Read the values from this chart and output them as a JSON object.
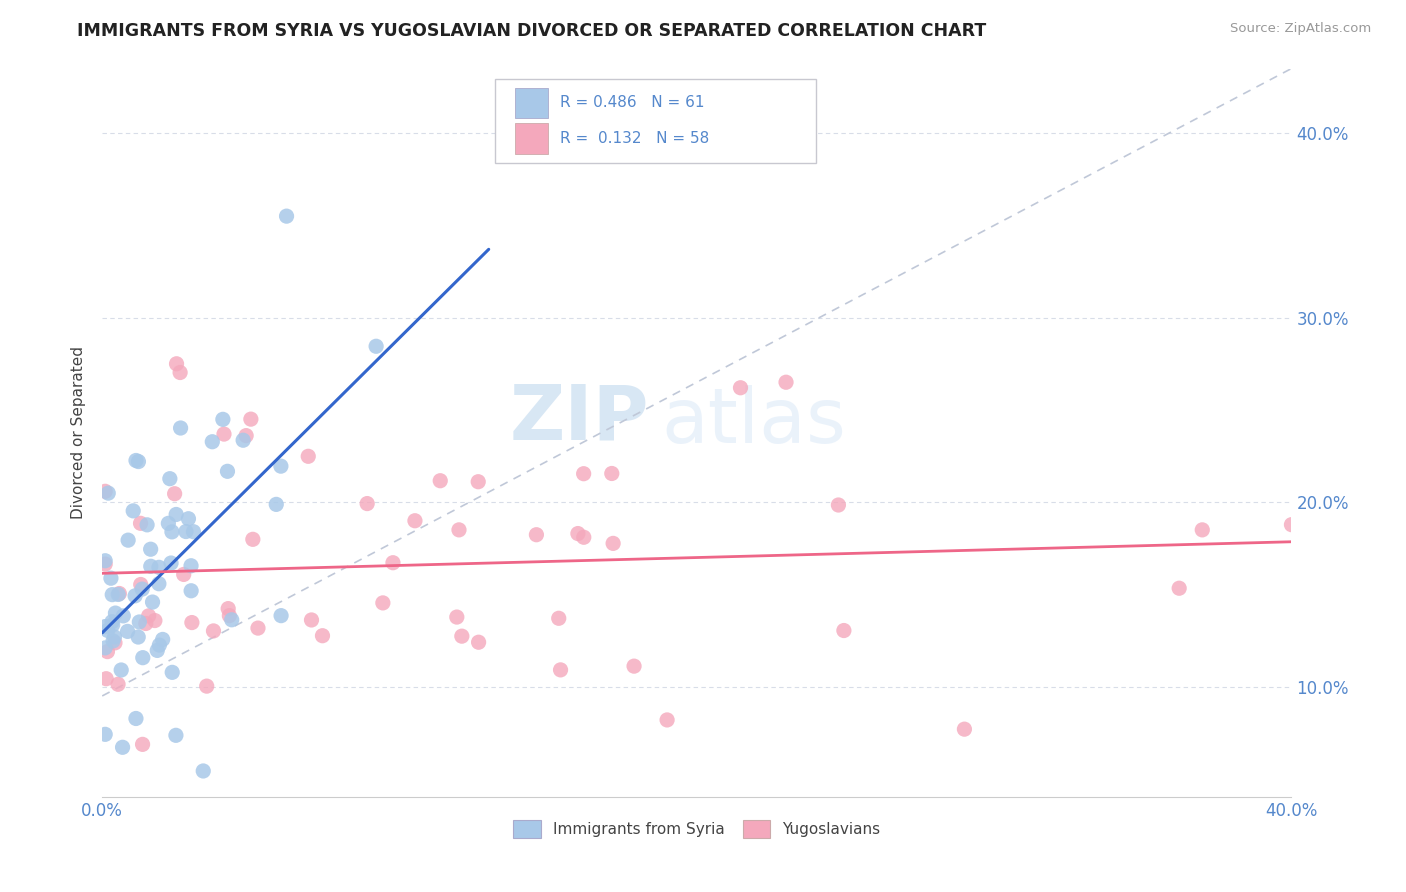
{
  "title": "IMMIGRANTS FROM SYRIA VS YUGOSLAVIAN DIVORCED OR SEPARATED CORRELATION CHART",
  "source": "Source: ZipAtlas.com",
  "ylabel": "Divorced or Separated",
  "legend_label1": "Immigrants from Syria",
  "legend_label2": "Yugoslavians",
  "legend_r1": "0.486",
  "legend_n1": "61",
  "legend_r2": "0.132",
  "legend_n2": "58",
  "color_syria": "#a8c8e8",
  "color_yugo": "#f4a8bc",
  "color_line_syria": "#3366cc",
  "color_line_yugo": "#ee6688",
  "color_dashed": "#c0c8d8",
  "background_color": "#ffffff",
  "grid_color": "#d8dde8",
  "xmin": 0.0,
  "xmax": 0.4,
  "ymin": 0.04,
  "ymax": 0.435,
  "y_ticks": [
    0.1,
    0.2,
    0.3,
    0.4
  ],
  "watermark_zip": "ZIP",
  "watermark_atlas": "atlas"
}
